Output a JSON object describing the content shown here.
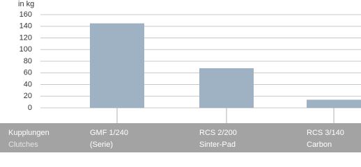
{
  "chart_data": {
    "type": "bar",
    "y_unit": "in kg",
    "categories": [
      [
        "GMF 1/240",
        "(Serie)"
      ],
      [
        "RCS 2/200",
        "Sinter-Pad"
      ],
      [
        "RCS 3/140",
        "Carbon"
      ]
    ],
    "row_labels": [
      "Kupplungen",
      "Clutches"
    ],
    "values": [
      145,
      68,
      14
    ],
    "color": "#9fb2c3",
    "ylim": [
      0,
      160
    ],
    "yticks": [
      0,
      20,
      40,
      60,
      80,
      100,
      120,
      140,
      160
    ],
    "grid": true
  }
}
